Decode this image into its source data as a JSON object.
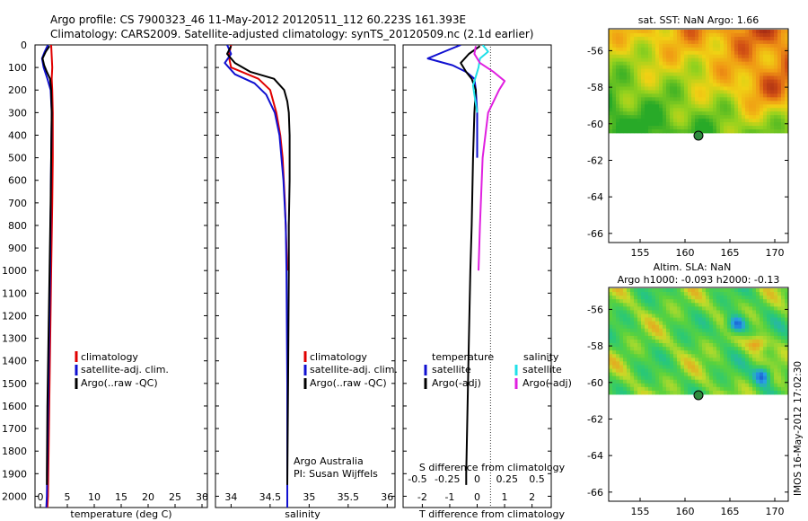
{
  "header": {
    "line1": "Argo profile: CS 7900323_46 11-May-2012 20120511_112 60.223S 161.393E",
    "line2": "Climatology: CARS2009. Satellite-adjusted climatology: synTS_20120509.nc (2.1d earlier)"
  },
  "depth_ticks": [
    "0",
    "100",
    "200",
    "300",
    "400",
    "500",
    "600",
    "700",
    "800",
    "900",
    "1000",
    "1100",
    "1200",
    "1300",
    "1400",
    "1500",
    "1600",
    "1700",
    "1800",
    "1900",
    "2000"
  ],
  "colors": {
    "climatology": "#e00000",
    "satellite": "#1010d0",
    "argo": "#000000",
    "sat_salinity": "#20e0e8",
    "argo_salinity_adj": "#e020e0"
  },
  "panel_temperature": {
    "xlabel": "temperature (deg C)",
    "xticks": [
      "0",
      "5",
      "10",
      "15",
      "20",
      "25",
      "30"
    ],
    "legend": [
      "climatology",
      "satellite-adj. clim.",
      "Argo(..raw -QC)"
    ]
  },
  "panel_salinity": {
    "xlabel": "salinity",
    "xticks": [
      "34",
      "34.5",
      "35",
      "35.5",
      "36"
    ],
    "legend": [
      "climatology",
      "satellite-adj. clim.",
      "Argo(..raw -QC)"
    ],
    "note1": "Argo Australia",
    "note2": "PI: Susan Wijffels"
  },
  "panel_diff": {
    "xlabel": "T difference from climatology",
    "top_axis_label": "S difference from climatology",
    "xticks_bottom": [
      "-2",
      "-1",
      "0",
      "1",
      "2"
    ],
    "xticks_top": [
      "-0.5",
      "-0.25",
      "0",
      "0.25",
      "0.5"
    ],
    "legend_t_title": "temperature",
    "legend_s_title": "salinity",
    "legend_t": [
      "satellite",
      "Argo(-adj)"
    ],
    "legend_s": [
      "satellite",
      "Argo(-adj)"
    ]
  },
  "map_sst": {
    "title": "sat. SST: NaN Argo: 1.66",
    "yticks": [
      "-56",
      "-58",
      "-60",
      "-62",
      "-64",
      "-66"
    ],
    "xticks": [
      "155",
      "160",
      "165",
      "170"
    ]
  },
  "map_sla": {
    "title1": "Altim. SLA: NaN",
    "title2": "Argo h1000: -0.093 h2000: -0.13",
    "yticks": [
      "-56",
      "-58",
      "-60",
      "-62",
      "-64",
      "-66"
    ],
    "xticks": [
      "155",
      "160",
      "165",
      "170"
    ]
  },
  "footer_stamp": "IMOS 16-May-2012 17:02:30",
  "chart_data": [
    {
      "type": "line",
      "title": "",
      "xlabel": "temperature (deg C)",
      "ylabel": "",
      "xlim": [
        -1,
        31
      ],
      "ylim": [
        2050,
        0
      ],
      "series": [
        {
          "name": "climatology",
          "depth": [
            0,
            50,
            100,
            150,
            200,
            300,
            500,
            700,
            1000,
            1500,
            2000,
            2050
          ],
          "values": [
            2.0,
            2.1,
            2.2,
            2.1,
            2.2,
            2.3,
            2.3,
            2.2,
            2.0,
            1.7,
            1.4,
            1.3
          ]
        },
        {
          "name": "satellite-adj. clim.",
          "depth": [
            0,
            30,
            60,
            100,
            150,
            200,
            300,
            500,
            1000,
            1500,
            2000,
            2050
          ],
          "values": [
            1.4,
            0.8,
            0.3,
            0.6,
            1.3,
            1.9,
            2.1,
            2.0,
            1.8,
            1.5,
            1.2,
            1.1
          ]
        },
        {
          "name": "Argo(..raw -QC)",
          "depth": [
            5,
            30,
            60,
            90,
            120,
            150,
            200,
            300,
            500,
            700,
            1000,
            1300,
            1600,
            1900,
            1950
          ],
          "values": [
            1.7,
            1.0,
            0.4,
            0.7,
            1.2,
            1.8,
            2.0,
            2.1,
            2.0,
            1.9,
            1.7,
            1.5,
            1.3,
            1.2,
            1.2
          ]
        }
      ]
    },
    {
      "type": "line",
      "title": "",
      "xlabel": "salinity",
      "ylabel": "",
      "xlim": [
        33.8,
        36.1
      ],
      "ylim": [
        2050,
        0
      ],
      "series": [
        {
          "name": "climatology",
          "depth": [
            0,
            50,
            100,
            150,
            200,
            300,
            400,
            500,
            700,
            900,
            1000
          ],
          "values": [
            34.0,
            33.97,
            34.0,
            34.35,
            34.5,
            34.58,
            34.63,
            34.66,
            34.69,
            34.71,
            34.72
          ]
        },
        {
          "name": "satellite-adj. clim.",
          "depth": [
            0,
            40,
            80,
            130,
            170,
            220,
            300,
            400,
            600,
            800,
            1000,
            1500,
            2000,
            2050
          ],
          "values": [
            33.95,
            34.0,
            33.92,
            34.05,
            34.3,
            34.45,
            34.56,
            34.62,
            34.67,
            34.7,
            34.71,
            34.72,
            34.72,
            34.72
          ]
        },
        {
          "name": "Argo(..raw -QC)",
          "depth": [
            5,
            40,
            80,
            120,
            150,
            200,
            250,
            300,
            400,
            600,
            800,
            1000,
            1500,
            1950
          ],
          "values": [
            34.0,
            33.95,
            34.05,
            34.25,
            34.55,
            34.68,
            34.72,
            34.74,
            34.75,
            34.75,
            34.74,
            34.74,
            34.73,
            34.72
          ]
        }
      ]
    },
    {
      "type": "line",
      "title": "",
      "xlabel": "T difference from climatology",
      "ylabel": "",
      "xlim": [
        -2.7,
        2.7
      ],
      "ylim": [
        2050,
        0
      ],
      "series": [
        {
          "name": "temperature satellite",
          "depth": [
            0,
            30,
            60,
            90,
            120,
            150,
            200,
            300,
            500
          ],
          "values": [
            -0.6,
            -1.2,
            -1.8,
            -0.9,
            -0.4,
            -0.1,
            -0.05,
            0.0,
            0.0
          ]
        },
        {
          "name": "temperature Argo(-adj)",
          "depth": [
            5,
            40,
            80,
            120,
            150,
            200,
            300,
            500,
            800,
            1000,
            1300,
            1600,
            1900,
            1950
          ],
          "values": [
            0.1,
            -0.3,
            -0.6,
            -0.4,
            -0.2,
            -0.05,
            -0.1,
            -0.15,
            -0.2,
            -0.25,
            -0.3,
            -0.35,
            -0.4,
            -0.4
          ]
        },
        {
          "name": "salinity satellite",
          "depth": [
            0,
            30,
            60,
            100,
            140,
            180,
            220,
            260,
            300
          ],
          "values": [
            0.2,
            0.4,
            0.1,
            0.05,
            -0.05,
            -0.15,
            -0.1,
            -0.05,
            0.0
          ]
        },
        {
          "name": "salinity Argo(-adj)",
          "depth": [
            5,
            40,
            80,
            120,
            160,
            200,
            300,
            500,
            800,
            1000
          ],
          "values": [
            -0.05,
            -0.1,
            0.1,
            0.6,
            1.0,
            0.8,
            0.4,
            0.2,
            0.1,
            0.05
          ]
        }
      ]
    },
    {
      "type": "heatmap",
      "title": "sat. SST: NaN Argo: 1.66",
      "xlim": [
        151.5,
        171.5
      ],
      "ylim": [
        -66.5,
        -54.8
      ],
      "profile_location": [
        161.393,
        -60.223
      ]
    },
    {
      "type": "heatmap",
      "title": "Altim. SLA: NaN",
      "xlim": [
        151.5,
        171.5
      ],
      "ylim": [
        -66.5,
        -54.8
      ],
      "profile_location": [
        161.393,
        -60.223
      ]
    }
  ]
}
